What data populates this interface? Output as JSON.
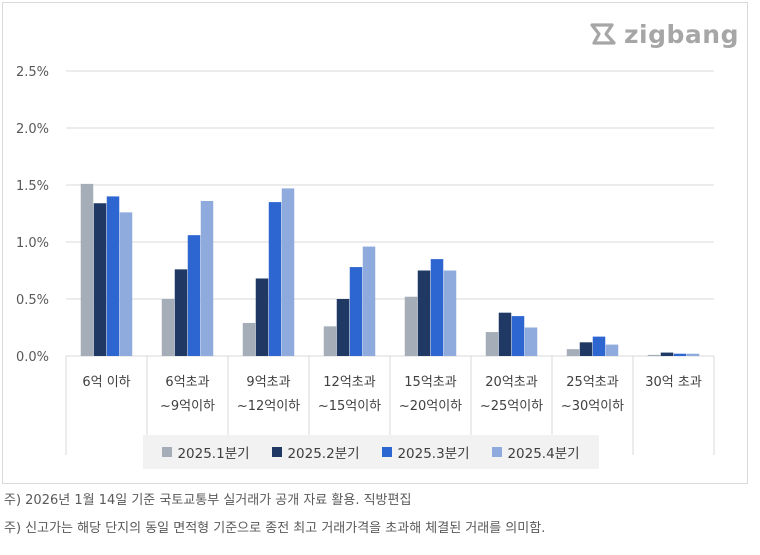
{
  "logo": {
    "text": "zigbang"
  },
  "footnotes": [
    "주) 2026년 1월 14일 기준 국토교통부 실거래가 공개 자료 활용. 직방편집",
    "주) 신고가는 해당 단지의 동일 면적형 기준으로 종전 최고 거래가격을 초과해 체결된 거래를 의미함."
  ],
  "colors": {
    "s1": "#a5aeb8",
    "s2": "#1f3864",
    "s3": "#2e66d1",
    "s4": "#8faadc",
    "grid": "#d9d9d9"
  },
  "chart_data": {
    "type": "bar",
    "categories": [
      [
        "6억 이하"
      ],
      [
        "6억초과",
        "~9억이하"
      ],
      [
        "9억초과",
        "~12억이하"
      ],
      [
        "12억초과",
        "~15억이하"
      ],
      [
        "15억초과",
        "~20억이하"
      ],
      [
        "20억초과",
        "~25억이하"
      ],
      [
        "25억초과",
        "~30억이하"
      ],
      [
        "30억 초과"
      ]
    ],
    "series": [
      {
        "name": "2025.1분기",
        "values": [
          1.51,
          0.5,
          0.29,
          0.26,
          0.52,
          0.21,
          0.06,
          0.01
        ]
      },
      {
        "name": "2025.2분기",
        "values": [
          1.34,
          0.76,
          0.68,
          0.5,
          0.75,
          0.38,
          0.12,
          0.03
        ]
      },
      {
        "name": "2025.3분기",
        "values": [
          1.4,
          1.06,
          1.35,
          0.78,
          0.85,
          0.35,
          0.17,
          0.02
        ]
      },
      {
        "name": "2025.4분기",
        "values": [
          1.26,
          1.36,
          1.47,
          0.96,
          0.75,
          0.25,
          0.1,
          0.02
        ]
      }
    ],
    "yticks": [
      "0.0%",
      "0.5%",
      "1.0%",
      "1.5%",
      "2.0%",
      "2.5%"
    ],
    "ylim": [
      0,
      2.5
    ],
    "legend": "bottom",
    "grid": true
  }
}
